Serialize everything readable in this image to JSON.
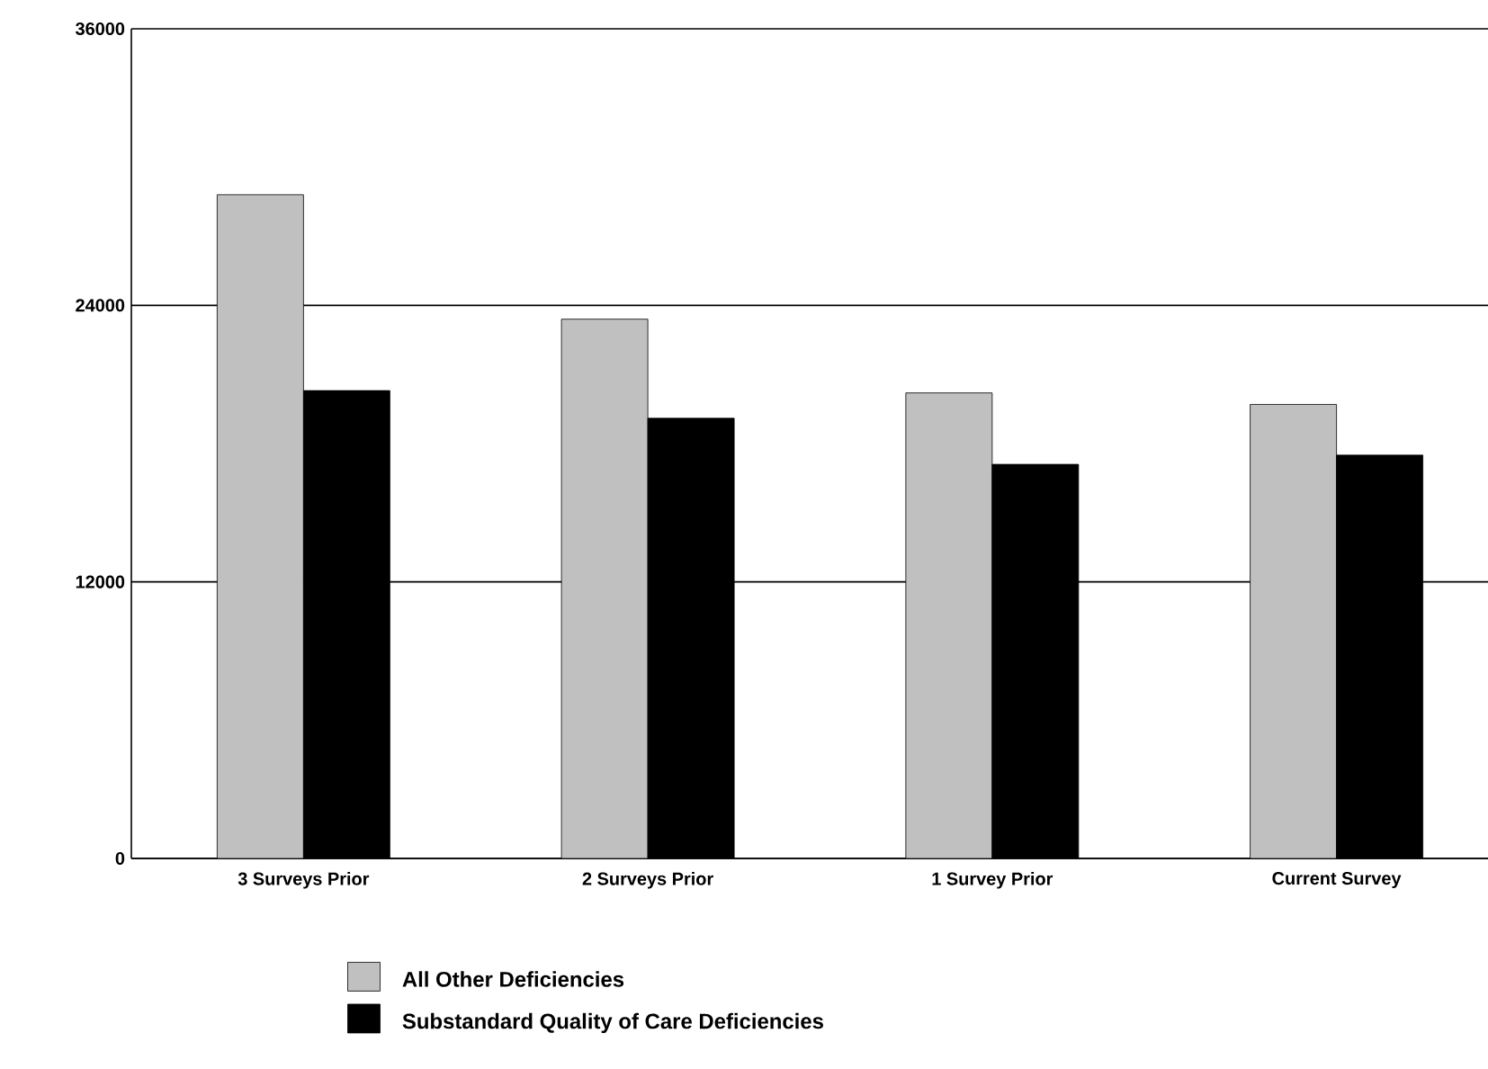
{
  "chart_data": {
    "type": "bar",
    "categories": [
      "3 Surveys Prior",
      "2 Surveys Prior",
      "1 Survey Prior",
      "Current Survey"
    ],
    "series": [
      {
        "name": "All Other Deficiencies",
        "color": "#c0c0c0",
        "values": [
          28800,
          23400,
          20200,
          19700
        ]
      },
      {
        "name": "Substandard Quality of Care Deficiencies",
        "color": "#000000",
        "values": [
          20300,
          19100,
          17100,
          17500
        ]
      }
    ],
    "ylim": [
      0,
      36000
    ],
    "yticks": [
      0,
      12000,
      24000,
      36000
    ],
    "grid": "y",
    "legend": "bottom"
  }
}
